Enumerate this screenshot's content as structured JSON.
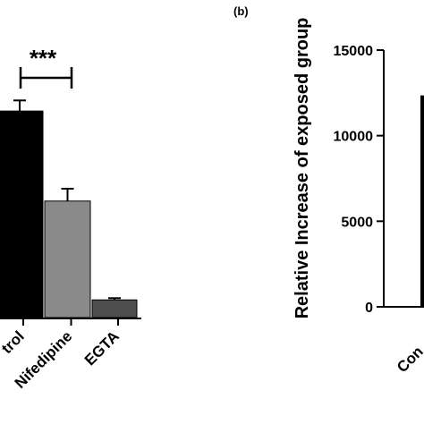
{
  "chart_data": [
    {
      "type": "bar",
      "panel_label": "",
      "categories": [
        "Control",
        "Nifedipine",
        "EGTA"
      ],
      "category_labels_visible": [
        "trol",
        "Nifedipine",
        "EGTA"
      ],
      "values": [
        11700,
        6600,
        1000
      ],
      "errors": [
        600,
        700,
        100
      ],
      "bar_colors": [
        "#000000",
        "#8a8a8a",
        "#4d4d4d"
      ],
      "significance": {
        "between": [
          "Control",
          "Nifedipine"
        ],
        "label": "***"
      },
      "ylabel": "",
      "ylim": [
        0,
        15000
      ]
    },
    {
      "type": "bar",
      "panel_label": "(b)",
      "categories": [
        "Con"
      ],
      "category_labels_visible": [
        "Con"
      ],
      "values": [
        12300
      ],
      "bar_colors": [
        "#000000"
      ],
      "ylabel": "Relative Increase of exposed group",
      "ylim": [
        0,
        15000
      ],
      "yticks": [
        0,
        5000,
        10000,
        15000
      ],
      "ytick_labels": [
        "0",
        "5000",
        "10000",
        "15000"
      ]
    }
  ]
}
